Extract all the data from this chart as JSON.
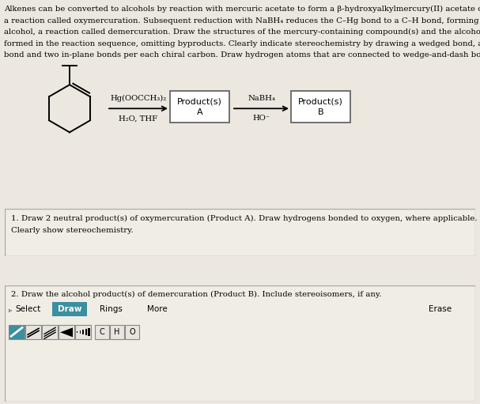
{
  "bg_top": "#ece8df",
  "bg_mid_gap": "#d0cdc7",
  "bg_section": "#f0ede5",
  "title_text": [
    "Alkenes can be converted to alcohols by reaction with mercuric acetate to form a β-hydroxyalkylmercury(II) acetate compound,",
    "a reaction called oxymercuration. Subsequent reduction with NaBH₄ reduces the C–Hg bond to a C–H bond, forming the alkyl",
    "alcohol, a reaction called demercuration. Draw the structures of the mercury-containing compound(s) and the alcohol product(s)",
    "formed in the reaction sequence, omitting byproducts. Clearly indicate stereochemistry by drawing a wedged bond, a dashed",
    "bond and two in-plane bonds per each chiral carbon. Draw hydrogen atoms that are connected to wedge-and-dash bonds."
  ],
  "reagent1": "Hg(OOCCH₃)₂",
  "reagent2": "H₂O, THF",
  "product_a_label": "Product(s)\nA",
  "reagent3": "NaBH₄",
  "reagent4": "HO⁻",
  "product_b_label": "Product(s)\nB",
  "section1_line1": "1. Draw 2 neutral product(s) of oxymercuration (Product A). Draw hydrogens bonded to oxygen, where applicable.",
  "section1_line2": "Clearly show stereochemistry.",
  "section2_text": "2. Draw the alcohol product(s) of demercuration (Product B). Include stereoisomers, if any.",
  "select_label": "Select",
  "draw_label": "Draw",
  "rings_label": "Rings",
  "more_label": "More",
  "erase_label": "Erase",
  "draw_btn_color": "#3a8fa0",
  "bond_btn_color": "#3a8fa0",
  "bond_btn_bg": "#f0ede5",
  "atom_labels": [
    "C",
    "H",
    "O"
  ]
}
